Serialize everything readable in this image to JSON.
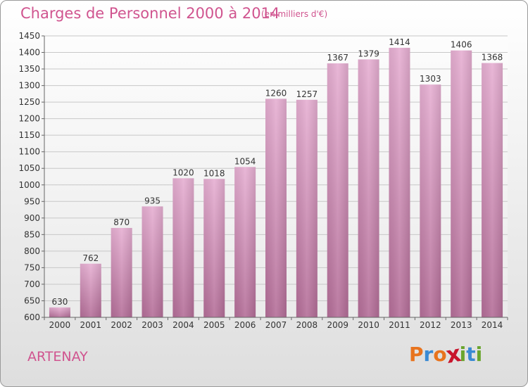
{
  "header": {
    "title": "Charges de Personnel 2000 à 2014",
    "subtitle": "(en milliers d'€)"
  },
  "footer": {
    "place": "ARTENAY",
    "logo_letters": [
      "P",
      "r",
      "o",
      "x",
      "i",
      "t",
      "i"
    ],
    "logo_colors": [
      "#e8731d",
      "#3a8ad3",
      "#e8731d",
      "#c8152c",
      "#6aa52e",
      "#3a8ad3",
      "#6aa52e"
    ]
  },
  "chart_data": {
    "type": "bar",
    "title": "Charges de Personnel 2000 à 2014",
    "subtitle": "(en milliers d'€)",
    "categories": [
      "2000",
      "2001",
      "2002",
      "2003",
      "2004",
      "2005",
      "2006",
      "2007",
      "2008",
      "2009",
      "2010",
      "2011",
      "2012",
      "2013",
      "2014"
    ],
    "values": [
      630,
      762,
      870,
      935,
      1020,
      1018,
      1054,
      1260,
      1257,
      1367,
      1379,
      1414,
      1303,
      1406,
      1368
    ],
    "ylim": [
      600,
      1450
    ],
    "yticks": [
      600,
      650,
      700,
      750,
      800,
      850,
      900,
      950,
      1000,
      1050,
      1100,
      1150,
      1200,
      1250,
      1300,
      1350,
      1400,
      1450
    ],
    "grid": true,
    "bar_color_top": "#e6afd2",
    "bar_color_bottom": "#b46e98"
  }
}
